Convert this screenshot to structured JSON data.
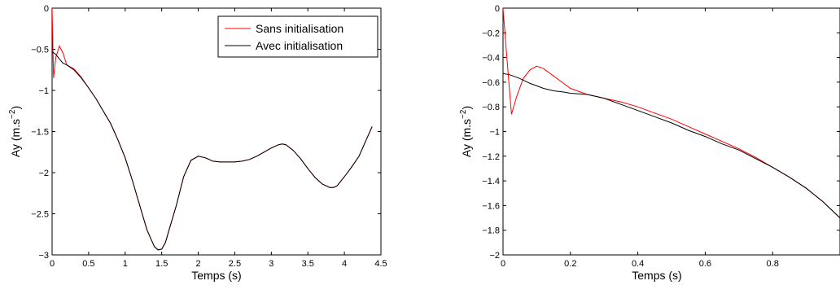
{
  "chart_data": [
    {
      "type": "line",
      "xlabel": "Temps (s)",
      "ylabel_base": "Ay (m.s",
      "ylabel_exp": "−2",
      "ylabel_close": ")",
      "xlim": [
        0,
        4.5
      ],
      "ylim": [
        -3,
        0
      ],
      "xticks": [
        0,
        0.5,
        1,
        1.5,
        2,
        2.5,
        3,
        3.5,
        4,
        4.5
      ],
      "xtick_labels": [
        "0",
        "0.5",
        "1",
        "1.5",
        "2",
        "2.5",
        "3",
        "3.5",
        "4",
        "4.5"
      ],
      "yticks": [
        0,
        -0.5,
        -1,
        -1.5,
        -2,
        -2.5,
        -3
      ],
      "ytick_labels": [
        "0",
        "−0.5",
        "−1",
        "−1.5",
        "−2",
        "−2.5",
        "−3"
      ],
      "grid": false,
      "legend": "top-right",
      "series": [
        {
          "name": "Sans initialisation",
          "color": "#ff0000",
          "x": [
            0,
            0.02,
            0.05,
            0.1,
            0.15,
            0.2,
            0.3,
            0.4,
            0.5,
            0.6,
            0.7,
            0.8,
            0.9,
            1.0,
            1.1,
            1.2,
            1.3,
            1.4,
            1.45,
            1.5,
            1.55,
            1.6,
            1.7,
            1.8,
            1.9,
            2.0,
            2.1,
            2.2,
            2.3,
            2.4,
            2.5,
            2.6,
            2.7,
            2.8,
            2.9,
            3.0,
            3.1,
            3.15,
            3.2,
            3.3,
            3.4,
            3.5,
            3.6,
            3.7,
            3.8,
            3.85,
            3.9,
            4.0,
            4.1,
            4.2,
            4.3,
            4.38
          ],
          "y": [
            0,
            -0.85,
            -0.6,
            -0.46,
            -0.55,
            -0.69,
            -0.74,
            -0.84,
            -0.97,
            -1.1,
            -1.25,
            -1.4,
            -1.6,
            -1.82,
            -2.1,
            -2.4,
            -2.7,
            -2.9,
            -2.94,
            -2.93,
            -2.85,
            -2.7,
            -2.4,
            -2.05,
            -1.85,
            -1.8,
            -1.82,
            -1.86,
            -1.87,
            -1.87,
            -1.87,
            -1.86,
            -1.84,
            -1.8,
            -1.75,
            -1.7,
            -1.66,
            -1.65,
            -1.66,
            -1.73,
            -1.83,
            -1.95,
            -2.06,
            -2.14,
            -2.18,
            -2.18,
            -2.16,
            -2.05,
            -1.93,
            -1.8,
            -1.6,
            -1.44
          ]
        },
        {
          "name": "Avec initialisation",
          "color": "#000000",
          "x": [
            0,
            0.05,
            0.1,
            0.15,
            0.2,
            0.3,
            0.4,
            0.5,
            0.6,
            0.7,
            0.8,
            0.9,
            1.0,
            1.1,
            1.2,
            1.3,
            1.4,
            1.45,
            1.5,
            1.55,
            1.6,
            1.7,
            1.8,
            1.9,
            2.0,
            2.1,
            2.2,
            2.3,
            2.4,
            2.5,
            2.6,
            2.7,
            2.8,
            2.9,
            3.0,
            3.1,
            3.15,
            3.2,
            3.3,
            3.4,
            3.5,
            3.6,
            3.7,
            3.8,
            3.85,
            3.9,
            4.0,
            4.1,
            4.2,
            4.3,
            4.38
          ],
          "y": [
            -0.53,
            -0.56,
            -0.62,
            -0.67,
            -0.69,
            -0.75,
            -0.85,
            -0.97,
            -1.1,
            -1.25,
            -1.4,
            -1.6,
            -1.82,
            -2.1,
            -2.4,
            -2.7,
            -2.9,
            -2.94,
            -2.93,
            -2.85,
            -2.7,
            -2.4,
            -2.05,
            -1.85,
            -1.8,
            -1.82,
            -1.86,
            -1.87,
            -1.87,
            -1.87,
            -1.86,
            -1.84,
            -1.8,
            -1.75,
            -1.7,
            -1.66,
            -1.65,
            -1.66,
            -1.73,
            -1.83,
            -1.95,
            -2.06,
            -2.14,
            -2.18,
            -2.18,
            -2.16,
            -2.05,
            -1.93,
            -1.8,
            -1.6,
            -1.44
          ]
        }
      ]
    },
    {
      "type": "line",
      "xlabel": "Temps (s)",
      "ylabel_base": "Ay (m.s",
      "ylabel_exp": "−2",
      "ylabel_close": ")",
      "xlim": [
        0,
        1
      ],
      "ylim": [
        -2,
        0
      ],
      "xticks": [
        0,
        0.2,
        0.4,
        0.6,
        0.8
      ],
      "xtick_labels": [
        "0",
        "0.2",
        "0.4",
        "0.6",
        "0.8"
      ],
      "yticks": [
        0,
        -0.2,
        -0.4,
        -0.6,
        -0.8,
        -1,
        -1.2,
        -1.4,
        -1.6,
        -1.8,
        -2
      ],
      "ytick_labels": [
        "0",
        "−0.2",
        "−0.4",
        "−0.6",
        "−0.8",
        "−1",
        "−1.2",
        "−1.4",
        "−1.6",
        "−1.8",
        "−2"
      ],
      "grid": false,
      "legend": "none",
      "series": [
        {
          "name": "Sans initialisation",
          "color": "#ff0000",
          "x": [
            0,
            0.01,
            0.025,
            0.04,
            0.06,
            0.08,
            0.1,
            0.12,
            0.15,
            0.18,
            0.2,
            0.25,
            0.3,
            0.35,
            0.4,
            0.45,
            0.5,
            0.55,
            0.6,
            0.65,
            0.7,
            0.75,
            0.8,
            0.85,
            0.9,
            0.95,
            1.0
          ],
          "y": [
            0,
            -0.35,
            -0.86,
            -0.72,
            -0.57,
            -0.5,
            -0.47,
            -0.49,
            -0.55,
            -0.61,
            -0.65,
            -0.7,
            -0.73,
            -0.76,
            -0.8,
            -0.85,
            -0.9,
            -0.96,
            -1.02,
            -1.08,
            -1.14,
            -1.21,
            -1.29,
            -1.37,
            -1.46,
            -1.57,
            -1.7
          ]
        },
        {
          "name": "Avec initialisation",
          "color": "#000000",
          "x": [
            0,
            0.02,
            0.05,
            0.08,
            0.1,
            0.12,
            0.15,
            0.18,
            0.2,
            0.25,
            0.3,
            0.35,
            0.4,
            0.45,
            0.5,
            0.55,
            0.6,
            0.65,
            0.7,
            0.75,
            0.8,
            0.85,
            0.9,
            0.95,
            1.0
          ],
          "y": [
            -0.53,
            -0.54,
            -0.57,
            -0.61,
            -0.63,
            -0.65,
            -0.67,
            -0.68,
            -0.69,
            -0.7,
            -0.73,
            -0.78,
            -0.83,
            -0.88,
            -0.93,
            -0.99,
            -1.04,
            -1.1,
            -1.15,
            -1.22,
            -1.29,
            -1.37,
            -1.46,
            -1.57,
            -1.7
          ]
        }
      ]
    }
  ]
}
